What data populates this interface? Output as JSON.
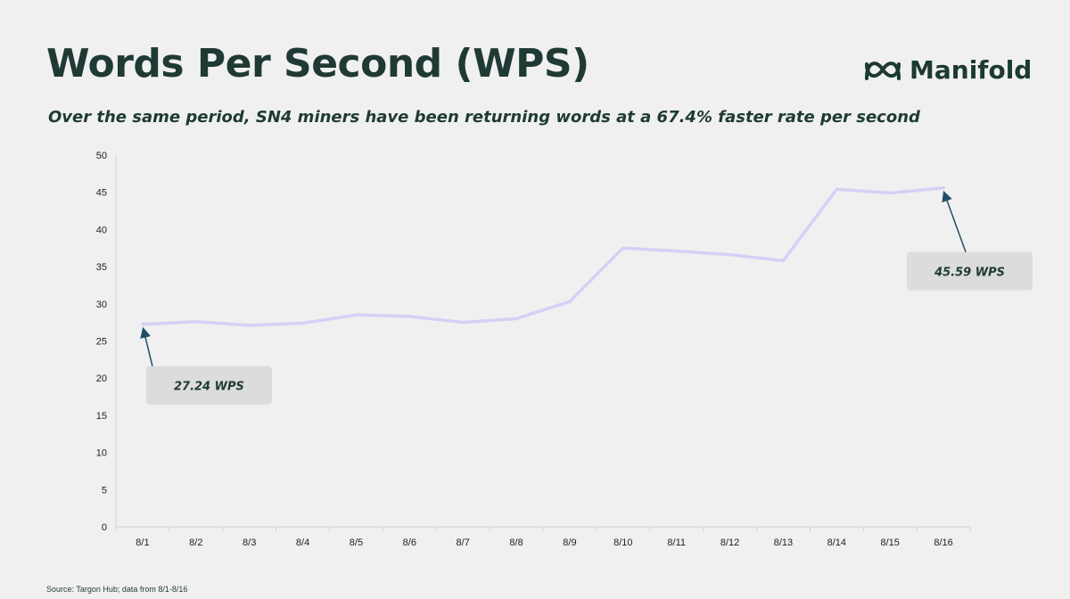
{
  "header": {
    "title": "Words Per Second (WPS)",
    "subtitle": "Over the same period, SN4 miners have been returning words at a 67.4% faster rate per second"
  },
  "brand": {
    "name": "Manifold",
    "logo_icon": "manifold-logo-icon",
    "color": "#1c3a2d"
  },
  "footer": {
    "source": "Source: Targon Hub; data from 8/1-8/16"
  },
  "chart_data": {
    "type": "line",
    "categories": [
      "8/1",
      "8/2",
      "8/3",
      "8/4",
      "8/5",
      "8/6",
      "8/7",
      "8/8",
      "8/9",
      "8/10",
      "8/11",
      "8/12",
      "8/13",
      "8/14",
      "8/15",
      "8/16"
    ],
    "series": [
      {
        "values": [
          27.24,
          27.6,
          27.1,
          27.4,
          28.5,
          28.3,
          27.5,
          28.0,
          30.3,
          37.5,
          37.1,
          36.6,
          35.8,
          45.4,
          44.9,
          45.59
        ],
        "color": "#d6d0f7"
      }
    ],
    "ylim": [
      0,
      50
    ],
    "yticks": [
      0,
      5,
      10,
      15,
      20,
      25,
      30,
      35,
      40,
      45,
      50
    ],
    "grid": false,
    "annotations": [
      {
        "label": "27.24 WPS",
        "category": "8/1",
        "value": 27.24
      },
      {
        "label": "45.59 WPS",
        "category": "8/16",
        "value": 45.59
      }
    ],
    "callout_color": "#dcdcdc",
    "arrow_color": "#1f4f66"
  }
}
